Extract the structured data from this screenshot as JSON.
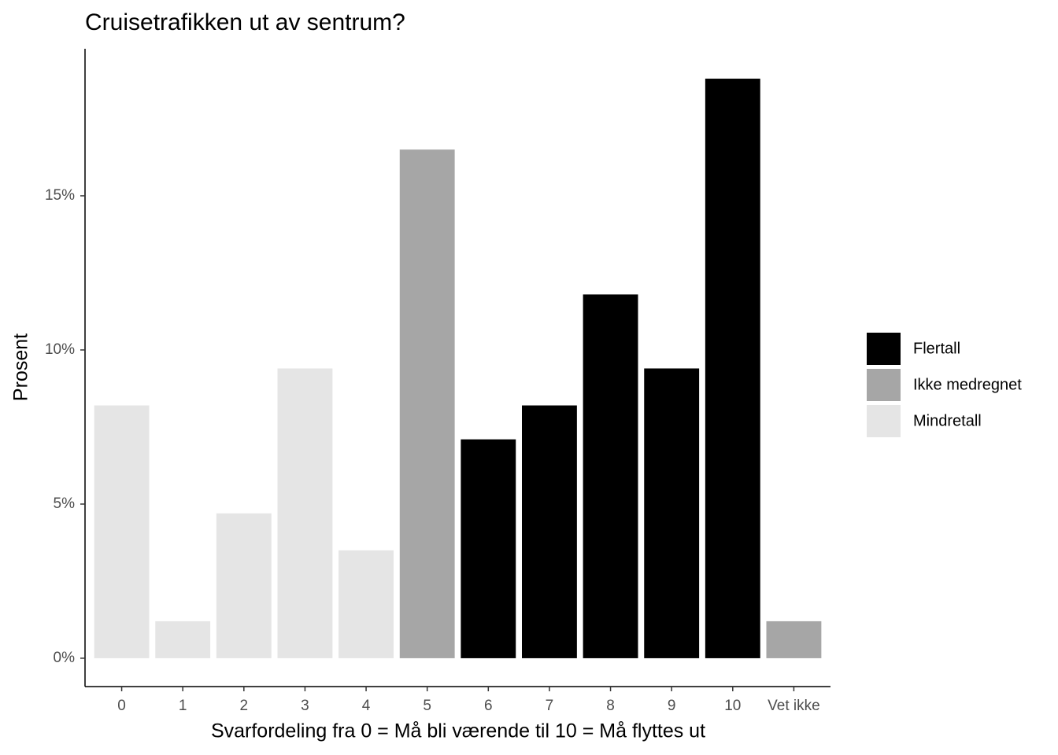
{
  "chart_data": {
    "type": "bar",
    "title": "Cruisetrafikken ut av sentrum?",
    "x_label": "Svarfordeling fra 0 = Må bli værende til 10 = Må flyttes ut",
    "y_label": "Prosent",
    "categories": [
      "0",
      "1",
      "2",
      "3",
      "4",
      "5",
      "6",
      "7",
      "8",
      "9",
      "10",
      "Vet ikke"
    ],
    "series": [
      {
        "name": "Flertall",
        "color": "#000000",
        "values": [
          null,
          null,
          null,
          null,
          null,
          null,
          7.1,
          8.2,
          11.8,
          9.4,
          18.8,
          null
        ]
      },
      {
        "name": "Ikke medregnet",
        "color": "#a6a6a6",
        "values": [
          null,
          null,
          null,
          null,
          null,
          16.5,
          null,
          null,
          null,
          null,
          null,
          1.2
        ]
      },
      {
        "name": "Mindretall",
        "color": "#e5e5e5",
        "values": [
          8.2,
          1.2,
          4.7,
          9.4,
          3.5,
          null,
          null,
          null,
          null,
          null,
          null,
          null
        ]
      }
    ],
    "ylim": [
      -0.92,
      19.77
    ],
    "yticks": [
      {
        "value": 0,
        "label": "0%"
      },
      {
        "value": 5,
        "label": "5%"
      },
      {
        "value": 10,
        "label": "10%"
      },
      {
        "value": 15,
        "label": "15%"
      }
    ],
    "grid": false,
    "legend": "right"
  }
}
